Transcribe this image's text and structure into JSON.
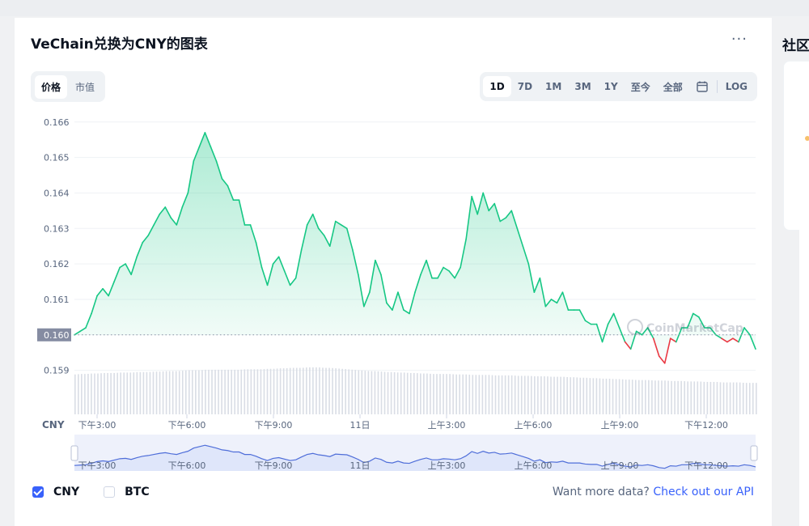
{
  "header": {
    "title": "VeChain兑换为CNY的图表",
    "more_label": "···"
  },
  "price_tabs": [
    {
      "label": "价格",
      "active": true
    },
    {
      "label": "市值",
      "active": false
    }
  ],
  "range_tabs": [
    {
      "label": "1D",
      "active": true
    },
    {
      "label": "7D",
      "active": false
    },
    {
      "label": "1M",
      "active": false
    },
    {
      "label": "3M",
      "active": false
    },
    {
      "label": "1Y",
      "active": false
    },
    {
      "label": "至今",
      "active": false
    },
    {
      "label": "全部",
      "active": false
    }
  ],
  "log_label": "LOG",
  "current_price_label": "0.160",
  "currency_label": "CNY",
  "watermark": "CoinMarketCap",
  "legend": [
    {
      "label": "CNY",
      "checked": true
    },
    {
      "label": "BTC",
      "checked": false
    }
  ],
  "footer": {
    "want_text": "Want more data?",
    "link_text": "Check out our API"
  },
  "sidebar": {
    "title": "社区"
  },
  "colors": {
    "up": "#16c784",
    "down": "#ea3943",
    "accent": "#3861fb",
    "nav_line": "#4f6ed9",
    "nav_fill": "#e3e9fb"
  },
  "chart_data": {
    "type": "area",
    "ylim": [
      0.1589,
      0.1662
    ],
    "baseline": 0.16,
    "y_ticks": [
      "0.166",
      "0.165",
      "0.164",
      "0.163",
      "0.162",
      "0.161",
      "0.160",
      "0.159"
    ],
    "x_labels": [
      "下午3:00",
      "下午6:00",
      "下午9:00",
      "11日",
      "上午3:00",
      "上午6:00",
      "上午9:00",
      "下午12:00"
    ],
    "series": [
      {
        "values": [
          0.16,
          0.1601,
          0.1602,
          0.1606,
          0.1611,
          0.1613,
          0.1611,
          0.1615,
          0.1619,
          0.162,
          0.1617,
          0.1622,
          0.1626,
          0.1628,
          0.1631,
          0.1634,
          0.1636,
          0.1633,
          0.1631,
          0.1636,
          0.164,
          0.1649,
          0.1653,
          0.1657,
          0.1653,
          0.1649,
          0.1644,
          0.1642,
          0.1638,
          0.1638,
          0.1631,
          0.1631,
          0.1626,
          0.1619,
          0.1614,
          0.162,
          0.1622,
          0.1618,
          0.1614,
          0.1616,
          0.1624,
          0.1631,
          0.1634,
          0.163,
          0.1628,
          0.1625,
          0.1632,
          0.1631,
          0.163,
          0.1624,
          0.1617,
          0.1608,
          0.1612,
          0.1621,
          0.1617,
          0.1609,
          0.1607,
          0.1612,
          0.1607,
          0.1606,
          0.1612,
          0.1617,
          0.1621,
          0.1616,
          0.1616,
          0.1619,
          0.1618,
          0.1616,
          0.1619,
          0.1627,
          0.1639,
          0.1634,
          0.164,
          0.1635,
          0.1637,
          0.1632,
          0.1633,
          0.1635,
          0.163,
          0.1625,
          0.162,
          0.1612,
          0.1616,
          0.1608,
          0.161,
          0.1609,
          0.1612,
          0.1607,
          0.1607,
          0.1607,
          0.1604,
          0.1603,
          0.1603,
          0.1598,
          0.1603,
          0.1606,
          0.1602,
          0.1598,
          0.1596,
          0.1601,
          0.16,
          0.1602,
          0.1599,
          0.1594,
          0.1592,
          0.1599,
          0.1598,
          0.1602,
          0.1602,
          0.1606,
          0.1605,
          0.1602,
          0.1602,
          0.16,
          0.1599,
          0.1598,
          0.1599,
          0.1598,
          0.1602,
          0.16,
          0.1596
        ],
        "volume": [
          0.85,
          0.86,
          0.86,
          0.87,
          0.87,
          0.88,
          0.88,
          0.88,
          0.89,
          0.89,
          0.89,
          0.9,
          0.9,
          0.9,
          0.91,
          0.91,
          0.92,
          0.92,
          0.92,
          0.93,
          0.94,
          0.94,
          0.94,
          0.95,
          0.95,
          0.95,
          0.95,
          0.95,
          0.95,
          0.95,
          0.96,
          0.96,
          0.96,
          0.96,
          0.97,
          0.97,
          0.98,
          0.98,
          0.99,
          0.99,
          0.99,
          1.0,
          1.0,
          1.0,
          0.99,
          0.99,
          0.98,
          0.97,
          0.96,
          0.95,
          0.94,
          0.93,
          0.92,
          0.92,
          0.91,
          0.9,
          0.9,
          0.89,
          0.89,
          0.88,
          0.88,
          0.87,
          0.87,
          0.86,
          0.86,
          0.86,
          0.86,
          0.85,
          0.85,
          0.85,
          0.84,
          0.84,
          0.84,
          0.84,
          0.83,
          0.83,
          0.83,
          0.83,
          0.82,
          0.82,
          0.82,
          0.81,
          0.81,
          0.81,
          0.8,
          0.8,
          0.8,
          0.79,
          0.79,
          0.78,
          0.78,
          0.77,
          0.77,
          0.76,
          0.76,
          0.75,
          0.75,
          0.74,
          0.74,
          0.73,
          0.73,
          0.73,
          0.72,
          0.72,
          0.72,
          0.71,
          0.71,
          0.71,
          0.7,
          0.7,
          0.7,
          0.69,
          0.69,
          0.69,
          0.68,
          0.68,
          0.68,
          0.68,
          0.67,
          0.67,
          0.67
        ]
      }
    ]
  }
}
